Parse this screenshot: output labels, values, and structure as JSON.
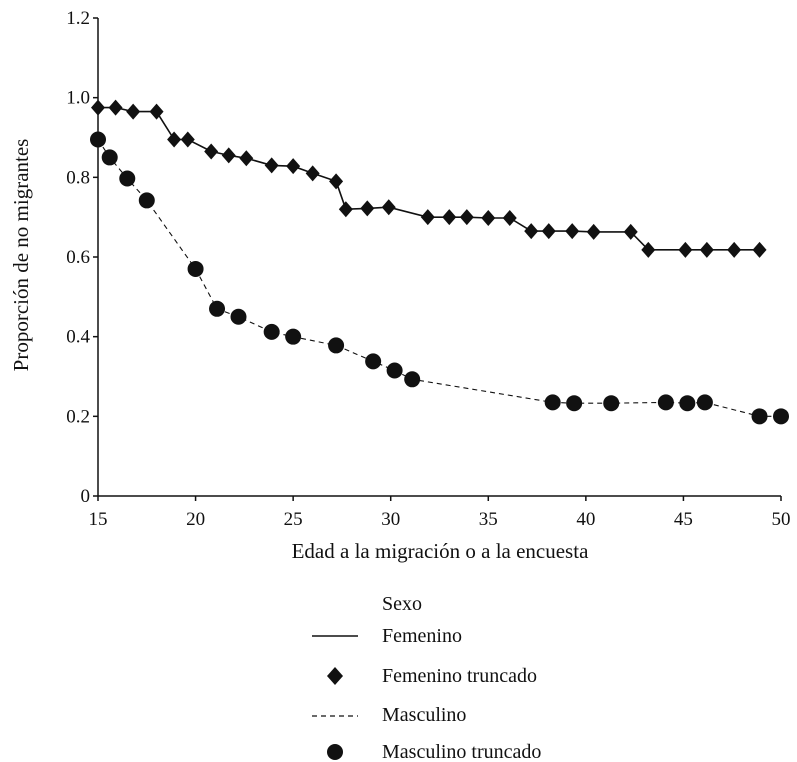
{
  "chart_data": {
    "type": "line",
    "title": "",
    "xlabel": "Edad a la migración o a la encuesta",
    "ylabel": "Proporción de no migrantes",
    "xlim": [
      15,
      50
    ],
    "ylim": [
      0,
      1.2
    ],
    "xticks": [
      15,
      20,
      25,
      30,
      35,
      40,
      45,
      50
    ],
    "yticks": [
      0,
      0.2,
      0.4,
      0.6,
      0.8,
      1.0,
      1.2
    ],
    "xtick_labels": [
      "15",
      "20",
      "25",
      "30",
      "35",
      "40",
      "45",
      "50"
    ],
    "ytick_labels": [
      "0",
      "0.2",
      "0.4",
      "0.6",
      "0.8",
      "1.0",
      "1.2"
    ],
    "grid": false,
    "legend": {
      "title": "Sexo",
      "position": "bottom-center",
      "entries": [
        {
          "label": "Femenino",
          "symbol": "solid-line"
        },
        {
          "label": "Femenino truncado",
          "symbol": "diamond"
        },
        {
          "label": "Masculino",
          "symbol": "dashed-line"
        },
        {
          "label": "Masculino truncado",
          "symbol": "circle"
        }
      ]
    },
    "series": [
      {
        "name": "Femenino",
        "line_style": "solid",
        "marker": "diamond",
        "points": [
          [
            15,
            0.975
          ],
          [
            15.9,
            0.975
          ],
          [
            16.8,
            0.965
          ],
          [
            18.0,
            0.965
          ],
          [
            18.9,
            0.895
          ],
          [
            19.6,
            0.895
          ],
          [
            20.8,
            0.865
          ],
          [
            21.7,
            0.855
          ],
          [
            22.6,
            0.848
          ],
          [
            23.9,
            0.83
          ],
          [
            25.0,
            0.828
          ],
          [
            26.0,
            0.81
          ],
          [
            27.2,
            0.79
          ],
          [
            27.7,
            0.72
          ],
          [
            28.8,
            0.722
          ],
          [
            29.9,
            0.725
          ],
          [
            31.9,
            0.7
          ],
          [
            33.0,
            0.7
          ],
          [
            33.9,
            0.7
          ],
          [
            35.0,
            0.698
          ],
          [
            36.1,
            0.698
          ],
          [
            37.2,
            0.665
          ],
          [
            38.1,
            0.665
          ],
          [
            39.3,
            0.665
          ],
          [
            40.4,
            0.663
          ],
          [
            42.3,
            0.663
          ],
          [
            43.2,
            0.618
          ],
          [
            45.1,
            0.618
          ],
          [
            46.2,
            0.618
          ],
          [
            47.6,
            0.618
          ],
          [
            48.9,
            0.618
          ]
        ],
        "truncated_x": [
          15,
          15.9,
          16.8,
          18.0,
          18.9,
          19.6,
          20.8,
          21.7,
          22.6,
          23.9,
          25.0,
          26.0,
          27.2,
          27.7,
          28.8,
          29.9,
          31.9,
          33.0,
          33.9,
          35.0,
          36.1,
          37.2,
          38.1,
          39.3,
          40.4,
          42.3,
          43.2,
          45.1,
          46.2,
          47.6,
          48.9
        ]
      },
      {
        "name": "Masculino",
        "line_style": "dashed",
        "marker": "circle",
        "points": [
          [
            15,
            0.895
          ],
          [
            15.6,
            0.85
          ],
          [
            16.5,
            0.797
          ],
          [
            17.5,
            0.742
          ],
          [
            20.0,
            0.57
          ],
          [
            21.1,
            0.47
          ],
          [
            22.2,
            0.45
          ],
          [
            23.9,
            0.412
          ],
          [
            25.0,
            0.4
          ],
          [
            27.2,
            0.378
          ],
          [
            29.1,
            0.338
          ],
          [
            30.2,
            0.315
          ],
          [
            31.1,
            0.293
          ],
          [
            38.3,
            0.235
          ],
          [
            39.4,
            0.233
          ],
          [
            41.3,
            0.233
          ],
          [
            44.1,
            0.235
          ],
          [
            45.2,
            0.233
          ],
          [
            46.1,
            0.235
          ],
          [
            48.9,
            0.2
          ],
          [
            50.0,
            0.2
          ]
        ],
        "truncated_x": [
          15,
          15.6,
          16.5,
          17.5,
          20.0,
          21.1,
          22.2,
          23.9,
          25.0,
          27.2,
          29.1,
          30.2,
          31.1,
          38.3,
          39.4,
          41.3,
          44.1,
          45.2,
          46.1,
          48.9,
          50.0
        ]
      }
    ]
  }
}
